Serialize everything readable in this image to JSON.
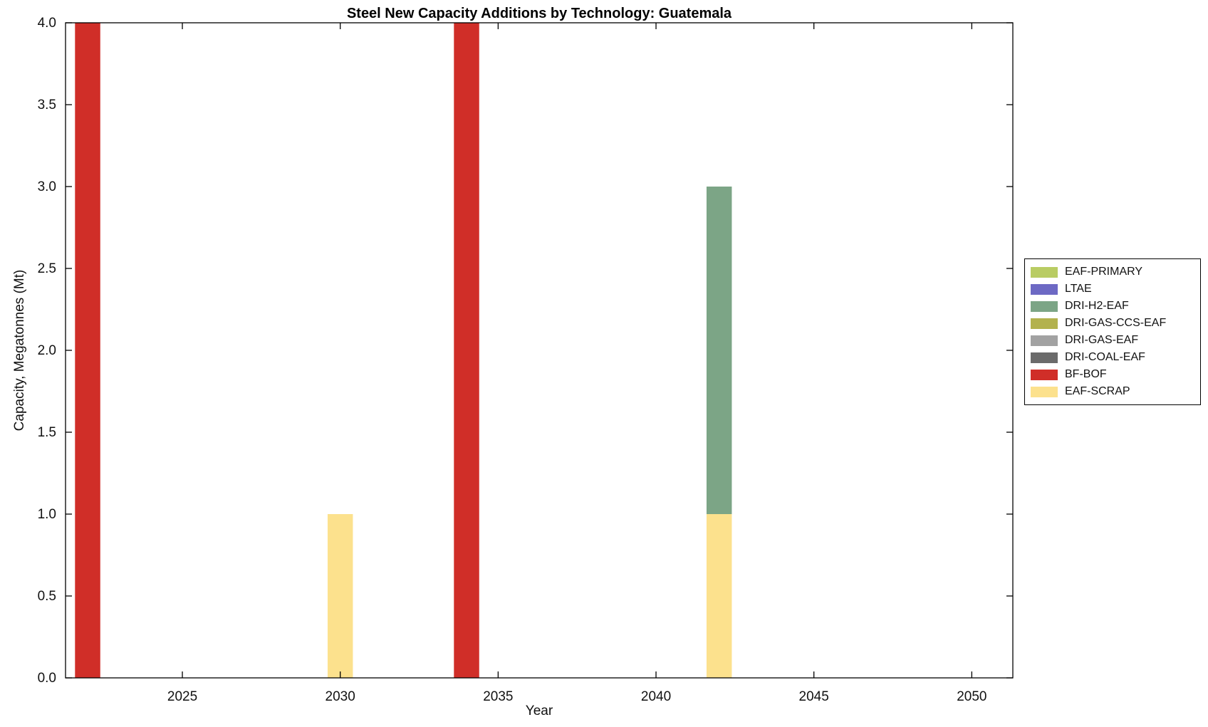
{
  "chart_data": {
    "type": "bar",
    "stacked": true,
    "title": "Steel New Capacity Additions by Technology: Guatemala",
    "xlabel": "Year",
    "ylabel": "Capacity, Megatonnes (Mt)",
    "xlim": [
      2021.3,
      2051.3
    ],
    "ylim": [
      0,
      4
    ],
    "xticks": [
      2025,
      2030,
      2035,
      2040,
      2045,
      2050
    ],
    "yticks": [
      0,
      0.5,
      1,
      1.5,
      2,
      2.5,
      3,
      3.5,
      4
    ],
    "ytick_labels": [
      "0.0",
      "0.5",
      "1.0",
      "1.5",
      "2.0",
      "2.5",
      "3.0",
      "3.5",
      "4.0"
    ],
    "bar_width_years": 0.8,
    "grid": false,
    "legend_position": "right-outside",
    "legend": [
      {
        "label": "EAF-PRIMARY",
        "color": "#b9cc63"
      },
      {
        "label": "LTAE",
        "color": "#6d69c4"
      },
      {
        "label": "DRI-H2-EAF",
        "color": "#7ca586"
      },
      {
        "label": "DRI-GAS-CCS-EAF",
        "color": "#b3b24e"
      },
      {
        "label": "DRI-GAS-EAF",
        "color": "#a2a2a2"
      },
      {
        "label": "DRI-COAL-EAF",
        "color": "#6b6b6b"
      },
      {
        "label": "BF-BOF",
        "color": "#d02e28"
      },
      {
        "label": "EAF-SCRAP",
        "color": "#fce18d"
      }
    ],
    "bars": [
      {
        "year": 2022,
        "segments": [
          {
            "tech": "BF-BOF",
            "value": 4.0
          }
        ]
      },
      {
        "year": 2030,
        "segments": [
          {
            "tech": "EAF-SCRAP",
            "value": 1.0
          }
        ]
      },
      {
        "year": 2034,
        "segments": [
          {
            "tech": "BF-BOF",
            "value": 4.0
          }
        ]
      },
      {
        "year": 2042,
        "segments": [
          {
            "tech": "EAF-SCRAP",
            "value": 1.0
          },
          {
            "tech": "DRI-H2-EAF",
            "value": 2.0
          }
        ]
      }
    ]
  }
}
